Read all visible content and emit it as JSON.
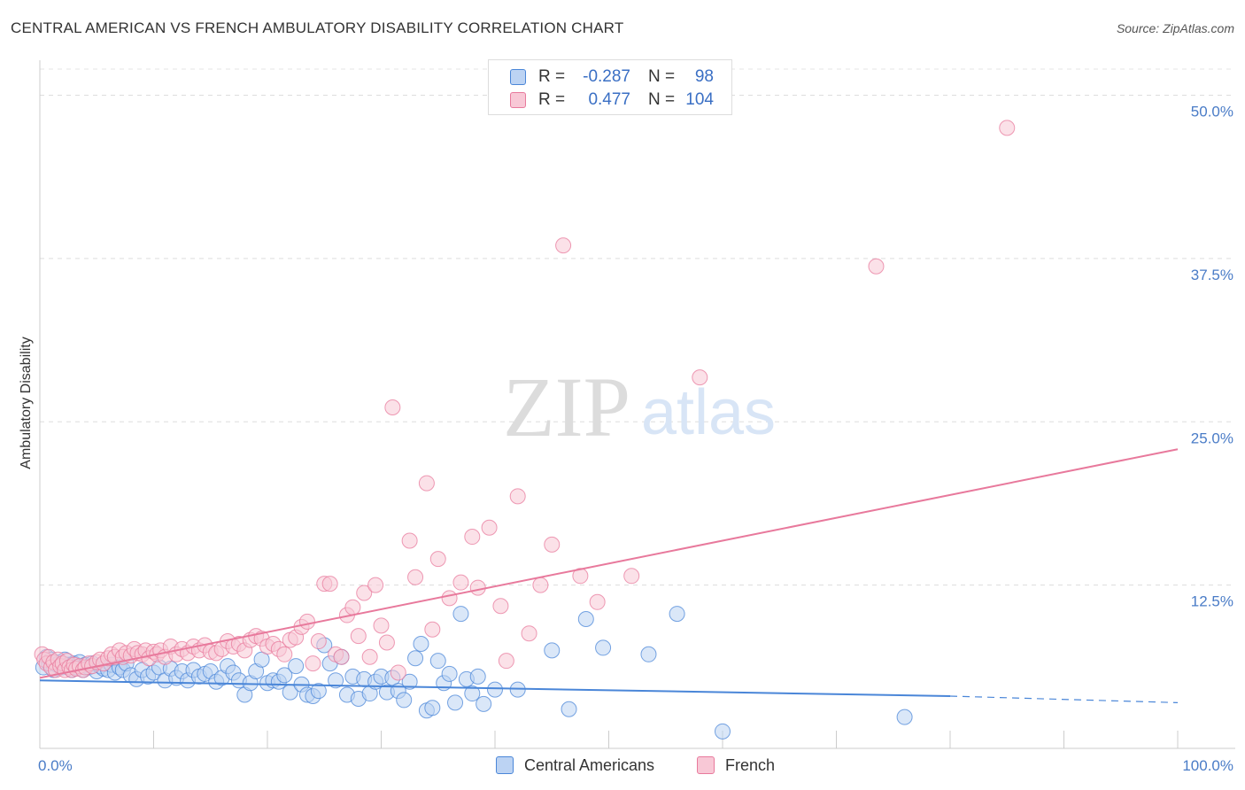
{
  "header": {
    "title": "CENTRAL AMERICAN VS FRENCH AMBULATORY DISABILITY CORRELATION CHART",
    "source": "Source: ZipAtlas.com"
  },
  "watermark": {
    "zip": "ZIP",
    "atlas": "atlas"
  },
  "legend": {
    "rows": [
      {
        "r_label": "R =",
        "r_value": "-0.287",
        "n_label": "N =",
        "n_value": "98",
        "color": "#4a86d8",
        "fill": "#bcd3f3"
      },
      {
        "r_label": "R =",
        "r_value": "0.477",
        "n_label": "N =",
        "n_value": "104",
        "color": "#e8799c",
        "fill": "#f8c8d6"
      }
    ]
  },
  "bottom_legend": {
    "central": "Central Americans",
    "french": "French"
  },
  "chart_data": {
    "type": "scatter",
    "title": "CENTRAL AMERICAN VS FRENCH AMBULATORY DISABILITY CORRELATION CHART",
    "xlabel": "",
    "ylabel": "Ambulatory Disability",
    "xlim": [
      0,
      100
    ],
    "ylim": [
      0,
      52
    ],
    "x_tick_labels": [
      "0.0%",
      "100.0%"
    ],
    "y_ticks": [
      12.5,
      25.0,
      37.5,
      50.0
    ],
    "y_tick_labels": [
      "12.5%",
      "25.0%",
      "37.5%",
      "50.0%"
    ],
    "grid": "horizontal dashed",
    "legend_position": "top-center",
    "colors": {
      "central": "#4a86d8",
      "central_fill": "#bcd3f3",
      "french": "#e8799c",
      "french_fill": "#f8c8d6"
    },
    "series": [
      {
        "name": "Central Americans",
        "r": -0.287,
        "n": 98,
        "trend": {
          "x0": 0,
          "y0": 5.2,
          "x1": 80,
          "y1": 4.0,
          "dashed_to_x": 100,
          "dashed_to_y": 3.5
        },
        "points": [
          [
            0.3,
            6.2
          ],
          [
            0.6,
            7.0
          ],
          [
            0.8,
            6.5
          ],
          [
            1.0,
            6.8
          ],
          [
            1.2,
            6.0
          ],
          [
            1.5,
            6.4
          ],
          [
            1.8,
            6.6
          ],
          [
            2.0,
            6.2
          ],
          [
            2.2,
            6.8
          ],
          [
            2.5,
            6.4
          ],
          [
            2.8,
            6.0
          ],
          [
            3.0,
            6.5
          ],
          [
            3.2,
            6.2
          ],
          [
            3.5,
            6.6
          ],
          [
            3.8,
            6.0
          ],
          [
            4.0,
            6.4
          ],
          [
            4.3,
            6.2
          ],
          [
            4.6,
            6.5
          ],
          [
            5.0,
            5.9
          ],
          [
            5.3,
            6.3
          ],
          [
            5.6,
            6.1
          ],
          [
            6.0,
            6.0
          ],
          [
            6.3,
            6.4
          ],
          [
            6.6,
            5.8
          ],
          [
            7.0,
            6.2
          ],
          [
            7.3,
            6.0
          ],
          [
            7.6,
            6.5
          ],
          [
            8.0,
            5.6
          ],
          [
            8.5,
            5.3
          ],
          [
            9.0,
            6.0
          ],
          [
            9.5,
            5.5
          ],
          [
            10.0,
            5.8
          ],
          [
            10.5,
            6.2
          ],
          [
            11.0,
            5.2
          ],
          [
            11.5,
            6.1
          ],
          [
            12.0,
            5.4
          ],
          [
            12.5,
            5.9
          ],
          [
            13.0,
            5.2
          ],
          [
            13.5,
            6.0
          ],
          [
            14.0,
            5.5
          ],
          [
            14.5,
            5.7
          ],
          [
            15.0,
            5.9
          ],
          [
            15.5,
            5.1
          ],
          [
            16.0,
            5.4
          ],
          [
            16.5,
            6.3
          ],
          [
            17.0,
            5.8
          ],
          [
            17.5,
            5.2
          ],
          [
            18.0,
            4.1
          ],
          [
            18.5,
            5.0
          ],
          [
            19.0,
            5.9
          ],
          [
            19.5,
            6.8
          ],
          [
            20.0,
            5.0
          ],
          [
            20.5,
            5.2
          ],
          [
            21.0,
            5.1
          ],
          [
            21.5,
            5.6
          ],
          [
            22.0,
            4.3
          ],
          [
            22.5,
            6.3
          ],
          [
            23.0,
            4.9
          ],
          [
            23.5,
            4.1
          ],
          [
            24.0,
            4.0
          ],
          [
            24.5,
            4.4
          ],
          [
            25.0,
            7.9
          ],
          [
            25.5,
            6.5
          ],
          [
            26.0,
            5.2
          ],
          [
            26.5,
            7.0
          ],
          [
            27.0,
            4.1
          ],
          [
            27.5,
            5.5
          ],
          [
            28.0,
            3.8
          ],
          [
            28.5,
            5.3
          ],
          [
            29.0,
            4.2
          ],
          [
            29.5,
            5.1
          ],
          [
            30.0,
            5.5
          ],
          [
            30.5,
            4.3
          ],
          [
            31.0,
            5.4
          ],
          [
            31.5,
            4.4
          ],
          [
            32.0,
            3.7
          ],
          [
            32.5,
            5.1
          ],
          [
            33.0,
            6.9
          ],
          [
            33.5,
            8.0
          ],
          [
            34.0,
            2.9
          ],
          [
            34.5,
            3.1
          ],
          [
            35.0,
            6.7
          ],
          [
            35.5,
            5.0
          ],
          [
            36.0,
            5.7
          ],
          [
            36.5,
            3.5
          ],
          [
            37.0,
            10.3
          ],
          [
            37.5,
            5.3
          ],
          [
            38.0,
            4.2
          ],
          [
            38.5,
            5.5
          ],
          [
            39.0,
            3.4
          ],
          [
            40.0,
            4.5
          ],
          [
            42.0,
            4.5
          ],
          [
            45.0,
            7.5
          ],
          [
            46.5,
            3.0
          ],
          [
            48.0,
            9.9
          ],
          [
            49.5,
            7.7
          ],
          [
            53.5,
            7.2
          ],
          [
            56.0,
            10.3
          ],
          [
            60.0,
            1.3
          ],
          [
            76.0,
            2.4
          ]
        ]
      },
      {
        "name": "French",
        "r": 0.477,
        "n": 104,
        "trend": {
          "x0": 0,
          "y0": 5.4,
          "x1": 100,
          "y1": 22.9
        },
        "points": [
          [
            0.2,
            7.2
          ],
          [
            0.4,
            6.8
          ],
          [
            0.6,
            6.5
          ],
          [
            0.8,
            7.0
          ],
          [
            1.0,
            6.2
          ],
          [
            1.2,
            6.6
          ],
          [
            1.4,
            6.0
          ],
          [
            1.6,
            6.8
          ],
          [
            1.8,
            6.3
          ],
          [
            2.0,
            6.5
          ],
          [
            2.2,
            6.0
          ],
          [
            2.4,
            6.7
          ],
          [
            2.6,
            6.2
          ],
          [
            2.8,
            6.0
          ],
          [
            3.0,
            6.4
          ],
          [
            3.2,
            6.1
          ],
          [
            3.5,
            6.3
          ],
          [
            3.8,
            6.0
          ],
          [
            4.0,
            6.2
          ],
          [
            4.3,
            6.5
          ],
          [
            4.6,
            6.3
          ],
          [
            5.0,
            6.6
          ],
          [
            5.3,
            6.8
          ],
          [
            5.6,
            6.5
          ],
          [
            6.0,
            6.9
          ],
          [
            6.3,
            7.2
          ],
          [
            6.6,
            7.0
          ],
          [
            7.0,
            7.5
          ],
          [
            7.3,
            7.0
          ],
          [
            7.6,
            7.3
          ],
          [
            8.0,
            7.1
          ],
          [
            8.3,
            7.6
          ],
          [
            8.6,
            7.3
          ],
          [
            9.0,
            7.2
          ],
          [
            9.3,
            7.5
          ],
          [
            9.6,
            6.9
          ],
          [
            10.0,
            7.4
          ],
          [
            10.3,
            7.2
          ],
          [
            10.6,
            7.5
          ],
          [
            11.0,
            7.0
          ],
          [
            11.5,
            7.8
          ],
          [
            12.0,
            7.2
          ],
          [
            12.5,
            7.6
          ],
          [
            13.0,
            7.3
          ],
          [
            13.5,
            7.8
          ],
          [
            14.0,
            7.5
          ],
          [
            14.5,
            7.9
          ],
          [
            15.0,
            7.4
          ],
          [
            15.5,
            7.3
          ],
          [
            16.0,
            7.6
          ],
          [
            16.5,
            8.2
          ],
          [
            17.0,
            7.8
          ],
          [
            17.5,
            8.0
          ],
          [
            18.0,
            7.5
          ],
          [
            18.5,
            8.3
          ],
          [
            19.0,
            8.6
          ],
          [
            19.5,
            8.4
          ],
          [
            20.0,
            7.8
          ],
          [
            20.5,
            8.0
          ],
          [
            21.0,
            7.6
          ],
          [
            21.5,
            7.2
          ],
          [
            22.0,
            8.3
          ],
          [
            22.5,
            8.5
          ],
          [
            23.0,
            9.3
          ],
          [
            23.5,
            9.7
          ],
          [
            24.0,
            6.5
          ],
          [
            24.5,
            8.2
          ],
          [
            25.0,
            12.6
          ],
          [
            25.5,
            12.6
          ],
          [
            26.0,
            7.2
          ],
          [
            26.5,
            7.0
          ],
          [
            27.0,
            10.2
          ],
          [
            27.5,
            10.8
          ],
          [
            28.0,
            8.6
          ],
          [
            28.5,
            11.9
          ],
          [
            29.0,
            7.0
          ],
          [
            29.5,
            12.5
          ],
          [
            30.0,
            9.4
          ],
          [
            30.5,
            8.1
          ],
          [
            31.0,
            26.1
          ],
          [
            31.5,
            5.8
          ],
          [
            32.5,
            15.9
          ],
          [
            33.0,
            13.1
          ],
          [
            34.0,
            20.3
          ],
          [
            34.5,
            9.1
          ],
          [
            35.0,
            14.5
          ],
          [
            36.0,
            11.5
          ],
          [
            37.0,
            12.7
          ],
          [
            38.0,
            16.2
          ],
          [
            38.5,
            12.3
          ],
          [
            39.5,
            16.9
          ],
          [
            40.5,
            10.9
          ],
          [
            41.0,
            6.7
          ],
          [
            42.0,
            19.3
          ],
          [
            43.0,
            8.8
          ],
          [
            44.0,
            12.5
          ],
          [
            45.0,
            15.6
          ],
          [
            46.0,
            38.5
          ],
          [
            47.5,
            13.2
          ],
          [
            49.0,
            11.2
          ],
          [
            52.0,
            13.2
          ],
          [
            58.0,
            28.4
          ],
          [
            73.5,
            36.9
          ],
          [
            85.0,
            47.5
          ]
        ]
      }
    ]
  }
}
